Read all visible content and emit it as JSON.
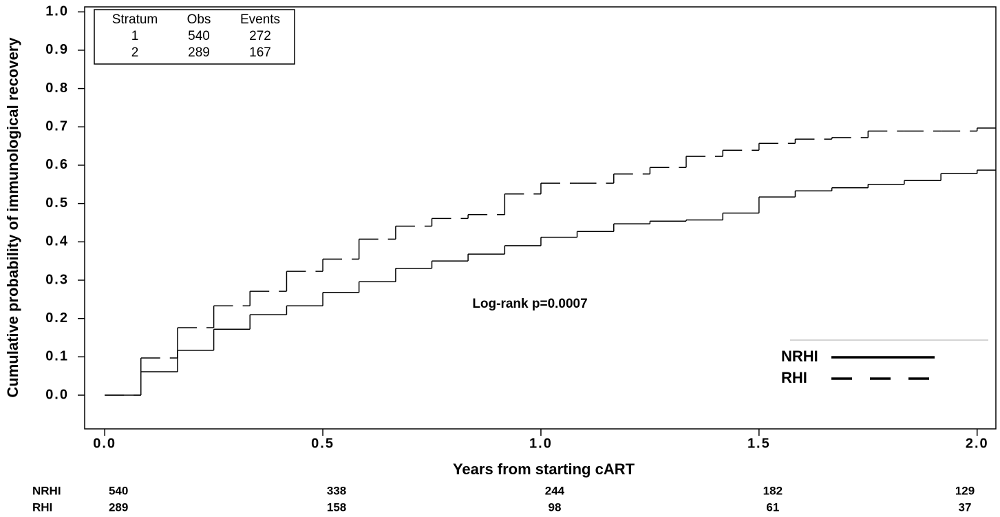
{
  "chart_data": {
    "type": "step",
    "x_label": "Years from starting cART",
    "y_label": "Cumulative probability of immunological recovery",
    "annotation": "Log-rank p=0.0007",
    "x": [
      0,
      0.083,
      0.167,
      0.25,
      0.333,
      0.417,
      0.5,
      0.583,
      0.667,
      0.75,
      0.833,
      0.917,
      1.0,
      1.083,
      1.167,
      1.25,
      1.333,
      1.417,
      1.5,
      1.583,
      1.667,
      1.75,
      1.833,
      1.917,
      2.0
    ],
    "series": [
      {
        "name": "NRHI",
        "color": "#000000",
        "linestyle": "solid",
        "values": [
          0,
          0.061,
          0.117,
          0.172,
          0.21,
          0.233,
          0.268,
          0.296,
          0.331,
          0.35,
          0.368,
          0.39,
          0.412,
          0.427,
          0.447,
          0.454,
          0.457,
          0.475,
          0.517,
          0.533,
          0.541,
          0.55,
          0.56,
          0.578,
          0.587
        ]
      },
      {
        "name": "RHI",
        "color": "#000000",
        "linestyle": "dashed",
        "values": [
          0,
          0.097,
          0.176,
          0.233,
          0.271,
          0.323,
          0.355,
          0.407,
          0.441,
          0.461,
          0.471,
          0.525,
          0.553,
          0.553,
          0.577,
          0.594,
          0.623,
          0.639,
          0.657,
          0.668,
          0.672,
          0.689,
          0.689,
          0.689,
          0.697
        ]
      }
    ],
    "xlim": [
      -0.046,
      2.043
    ],
    "ylim": [
      -0.088,
      1.013
    ],
    "xticks": [
      {
        "value": 0,
        "label": "0.0"
      },
      {
        "value": 0.5,
        "label": "0.5"
      },
      {
        "value": 1,
        "label": "1.0"
      },
      {
        "value": 1.5,
        "label": "1.5"
      },
      {
        "value": 2,
        "label": "2.0"
      }
    ],
    "yticks": [
      {
        "value": 0,
        "label": "0.0"
      },
      0.1,
      0.2,
      0.3,
      0.4,
      0.5,
      0.6,
      0.7,
      0.8,
      0.9,
      {
        "value": 1,
        "label": "1.0"
      }
    ],
    "legend": "lower right",
    "stratum_table": {
      "header": [
        "Stratum",
        "Obs",
        "Events"
      ],
      "rows": [
        [
          1,
          540,
          272
        ],
        [
          2,
          289,
          167
        ]
      ]
    },
    "risk_table": {
      "times": [
        0,
        0.5,
        1,
        1.5,
        2
      ],
      "rows": [
        {
          "name": "NRHI",
          "values": [
            540,
            338,
            244,
            182,
            129
          ]
        },
        {
          "name": "RHI",
          "values": [
            289,
            158,
            98,
            61,
            37
          ]
        }
      ]
    }
  }
}
